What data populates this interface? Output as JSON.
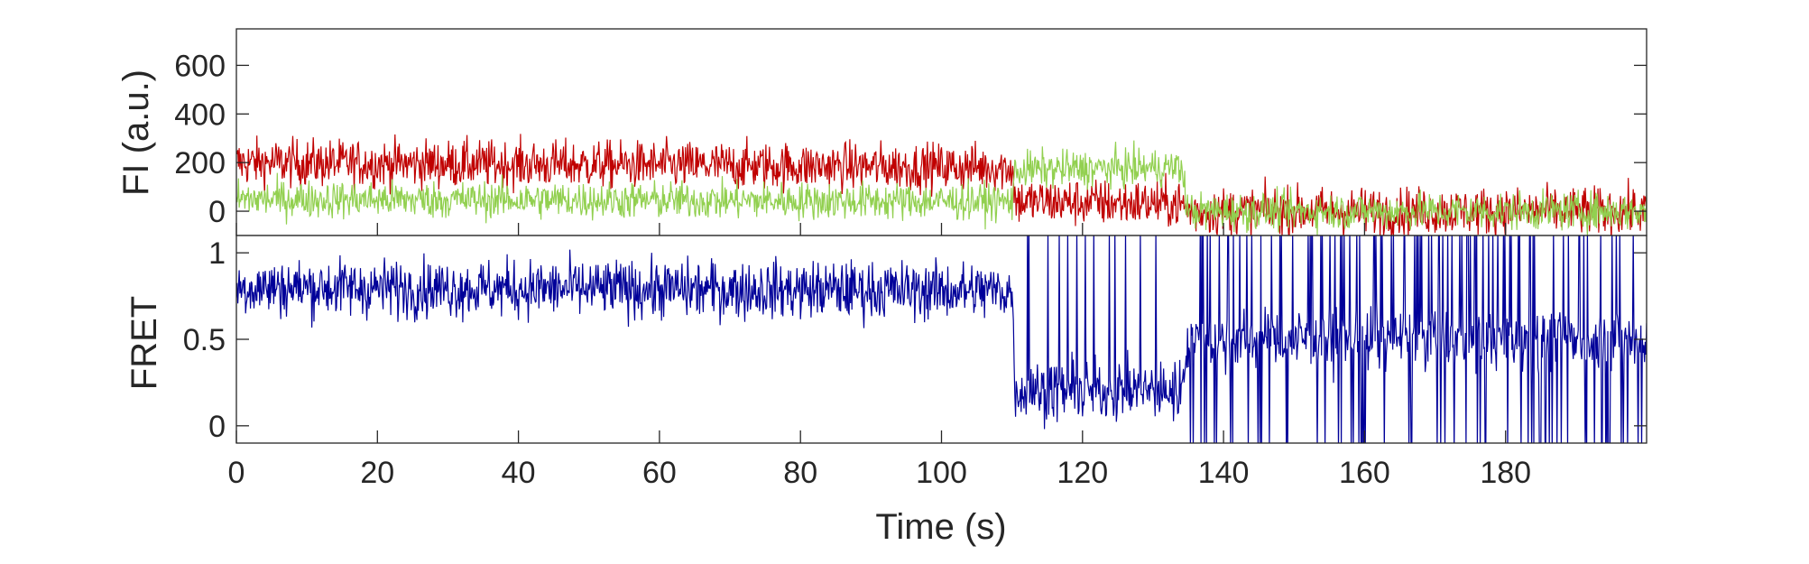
{
  "colors": {
    "acceptor": "#c00000",
    "donor": "#92d050",
    "fret": "#000099",
    "axes": "#262626"
  },
  "chart_data": [
    {
      "type": "line",
      "panel": "intensity",
      "xlabel": "",
      "ylabel": "FI (a.u.)",
      "xlim": [
        0,
        200
      ],
      "ylim": [
        -100,
        750
      ],
      "yticks": [
        0,
        200,
        400,
        600
      ],
      "ytick_labels": [
        "0",
        "200",
        "400",
        "600"
      ],
      "grid": false,
      "series": [
        {
          "color_key": "acceptor",
          "x": [
            0,
            110,
            110.5,
            134,
            135,
            200
          ],
          "y": [
            200,
            180,
            40,
            30,
            0,
            0
          ],
          "noise": 70
        },
        {
          "color_key": "donor",
          "x": [
            0,
            110,
            110.5,
            134,
            135,
            200
          ],
          "y": [
            50,
            40,
            170,
            180,
            0,
            0
          ],
          "noise": 55
        }
      ]
    },
    {
      "type": "line",
      "panel": "fret",
      "xlabel": "Time (s)",
      "ylabel": "FRET",
      "xlim": [
        0,
        200
      ],
      "ylim": [
        -0.1,
        1.1
      ],
      "yticks": [
        0,
        0.5,
        1
      ],
      "ytick_labels": [
        "0",
        "0.5",
        "1"
      ],
      "xticks": [
        0,
        20,
        40,
        60,
        80,
        100,
        120,
        140,
        160,
        180
      ],
      "xtick_labels": [
        "0",
        "20",
        "40",
        "60",
        "80",
        "100",
        "120",
        "140",
        "160",
        "180"
      ],
      "grid": false,
      "series": [
        {
          "color_key": "fret",
          "x": [
            0,
            110,
            110.5,
            134,
            135,
            200
          ],
          "y": [
            0.8,
            0.78,
            0.2,
            0.2,
            0.5,
            0.5
          ],
          "noise": 0.12
        }
      ]
    }
  ]
}
